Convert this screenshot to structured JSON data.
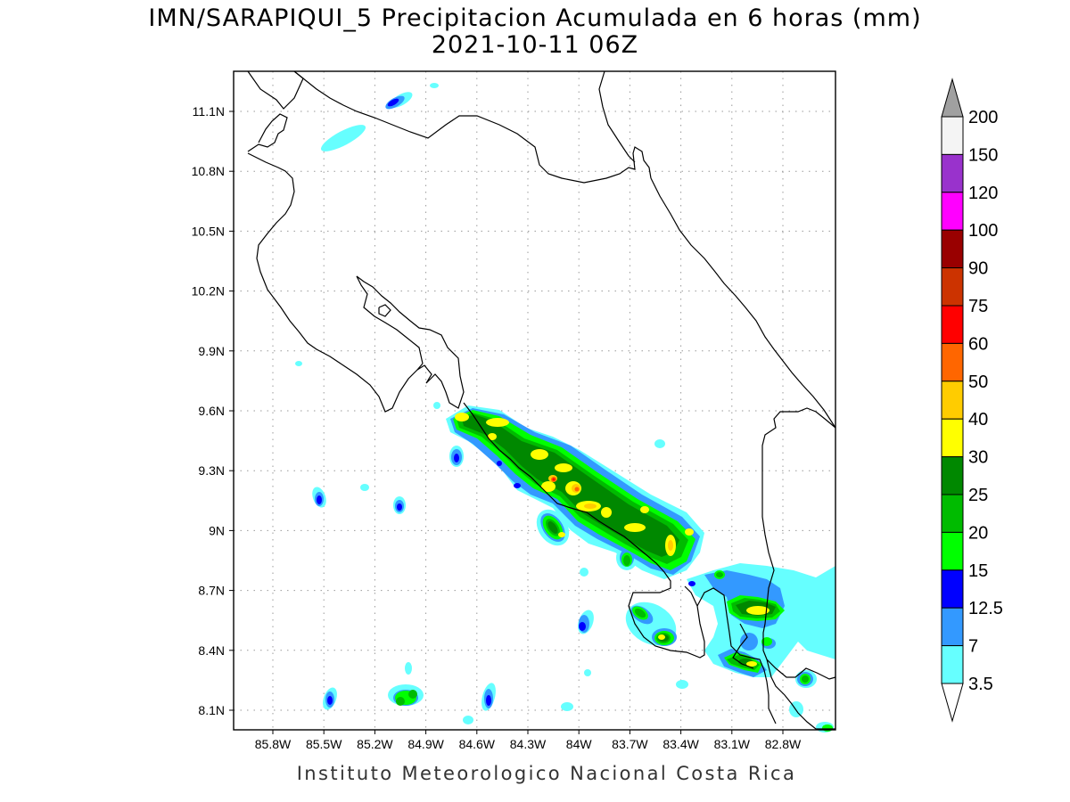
{
  "header": {
    "title_line1": "IMN/SARAPIQUI_5 Precipitacion Acumulada en 6 horas (mm)",
    "title_line2": "2021-10-11 06Z"
  },
  "footer": {
    "credit": "Instituto Meteorologico Nacional Costa Rica"
  },
  "map": {
    "lat_labels": [
      "11.1N",
      "10.8N",
      "10.5N",
      "10.2N",
      "9.9N",
      "9.6N",
      "9.3N",
      "9N",
      "8.7N",
      "8.4N",
      "8.1N"
    ],
    "lon_labels": [
      "85.8W",
      "85.5W",
      "85.2W",
      "84.9W",
      "84.6W",
      "84.3W",
      "84W",
      "83.7W",
      "83.4W",
      "83.1W",
      "82.8W"
    ],
    "grid": true
  },
  "colorbar": {
    "labels": [
      "200",
      "150",
      "120",
      "100",
      "90",
      "75",
      "60",
      "50",
      "40",
      "30",
      "25",
      "20",
      "15",
      "12.5",
      "7",
      "3.5"
    ],
    "colors": [
      "#a0a0a0",
      "#f4f4f4",
      "#9932cc",
      "#ff00ff",
      "#990000",
      "#cc3300",
      "#ff0000",
      "#ff6600",
      "#ffcc00",
      "#ffff00",
      "#008800",
      "#00bb00",
      "#00ff00",
      "#0000ff",
      "#3399ff",
      "#66ffff",
      "#ffffff"
    ],
    "units": "mm"
  }
}
